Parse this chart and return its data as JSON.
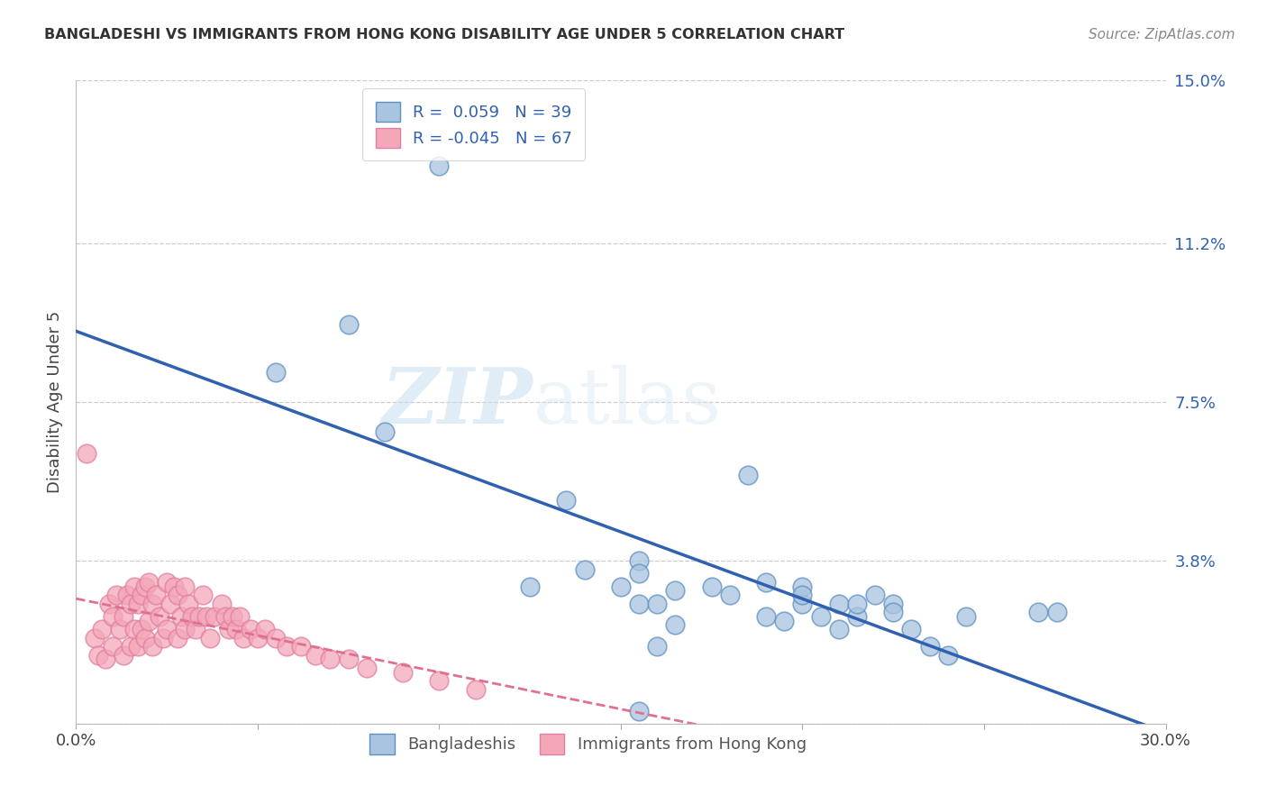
{
  "title": "BANGLADESHI VS IMMIGRANTS FROM HONG KONG DISABILITY AGE UNDER 5 CORRELATION CHART",
  "source": "Source: ZipAtlas.com",
  "ylabel": "Disability Age Under 5",
  "xlim": [
    0,
    0.3
  ],
  "ylim": [
    0,
    0.15
  ],
  "xticks": [
    0.0,
    0.05,
    0.1,
    0.15,
    0.2,
    0.25,
    0.3
  ],
  "xticklabels": [
    "0.0%",
    "",
    "",
    "",
    "",
    "",
    "30.0%"
  ],
  "ytick_labels_right": [
    "15.0%",
    "11.2%",
    "7.5%",
    "3.8%",
    ""
  ],
  "ytick_values_right": [
    0.15,
    0.112,
    0.075,
    0.038,
    0.0
  ],
  "R_blue": 0.059,
  "N_blue": 39,
  "R_pink": -0.045,
  "N_pink": 67,
  "blue_color": "#a8c4e0",
  "pink_color": "#f4a7b9",
  "blue_edge_color": "#6090c0",
  "pink_edge_color": "#e080a0",
  "blue_line_color": "#3060b0",
  "pink_line_color": "#e07090",
  "legend_blue_label": "Bangladeshis",
  "legend_pink_label": "Immigrants from Hong Kong",
  "watermark_zip": "ZIP",
  "watermark_atlas": "atlas",
  "blue_scatter_x": [
    0.075,
    0.055,
    0.085,
    0.1,
    0.125,
    0.135,
    0.14,
    0.15,
    0.155,
    0.16,
    0.165,
    0.16,
    0.175,
    0.155,
    0.19,
    0.185,
    0.195,
    0.2,
    0.205,
    0.21,
    0.215,
    0.22,
    0.225,
    0.23,
    0.235,
    0.24,
    0.245,
    0.18,
    0.155,
    0.2,
    0.165,
    0.19,
    0.21,
    0.27,
    0.155,
    0.2,
    0.215,
    0.225,
    0.265
  ],
  "blue_scatter_y": [
    0.093,
    0.082,
    0.068,
    0.13,
    0.032,
    0.052,
    0.036,
    0.032,
    0.028,
    0.018,
    0.031,
    0.028,
    0.032,
    0.038,
    0.025,
    0.058,
    0.024,
    0.028,
    0.025,
    0.028,
    0.025,
    0.03,
    0.028,
    0.022,
    0.018,
    0.016,
    0.025,
    0.03,
    0.035,
    0.032,
    0.023,
    0.033,
    0.022,
    0.026,
    0.003,
    0.03,
    0.028,
    0.026,
    0.026
  ],
  "pink_scatter_x": [
    0.003,
    0.005,
    0.006,
    0.007,
    0.008,
    0.009,
    0.01,
    0.01,
    0.011,
    0.012,
    0.013,
    0.013,
    0.014,
    0.015,
    0.015,
    0.016,
    0.016,
    0.017,
    0.017,
    0.018,
    0.018,
    0.019,
    0.019,
    0.02,
    0.02,
    0.021,
    0.021,
    0.022,
    0.023,
    0.024,
    0.025,
    0.025,
    0.026,
    0.027,
    0.028,
    0.028,
    0.029,
    0.03,
    0.03,
    0.031,
    0.032,
    0.033,
    0.034,
    0.035,
    0.036,
    0.037,
    0.038,
    0.04,
    0.041,
    0.042,
    0.043,
    0.044,
    0.045,
    0.046,
    0.048,
    0.05,
    0.052,
    0.055,
    0.058,
    0.062,
    0.066,
    0.07,
    0.075,
    0.08,
    0.09,
    0.1,
    0.11
  ],
  "pink_scatter_y": [
    0.063,
    0.02,
    0.016,
    0.022,
    0.015,
    0.028,
    0.025,
    0.018,
    0.03,
    0.022,
    0.025,
    0.016,
    0.03,
    0.028,
    0.018,
    0.032,
    0.022,
    0.028,
    0.018,
    0.03,
    0.022,
    0.032,
    0.02,
    0.033,
    0.024,
    0.028,
    0.018,
    0.03,
    0.025,
    0.02,
    0.033,
    0.022,
    0.028,
    0.032,
    0.03,
    0.02,
    0.025,
    0.032,
    0.022,
    0.028,
    0.025,
    0.022,
    0.025,
    0.03,
    0.025,
    0.02,
    0.025,
    0.028,
    0.025,
    0.022,
    0.025,
    0.022,
    0.025,
    0.02,
    0.022,
    0.02,
    0.022,
    0.02,
    0.018,
    0.018,
    0.016,
    0.015,
    0.015,
    0.013,
    0.012,
    0.01,
    0.008
  ]
}
